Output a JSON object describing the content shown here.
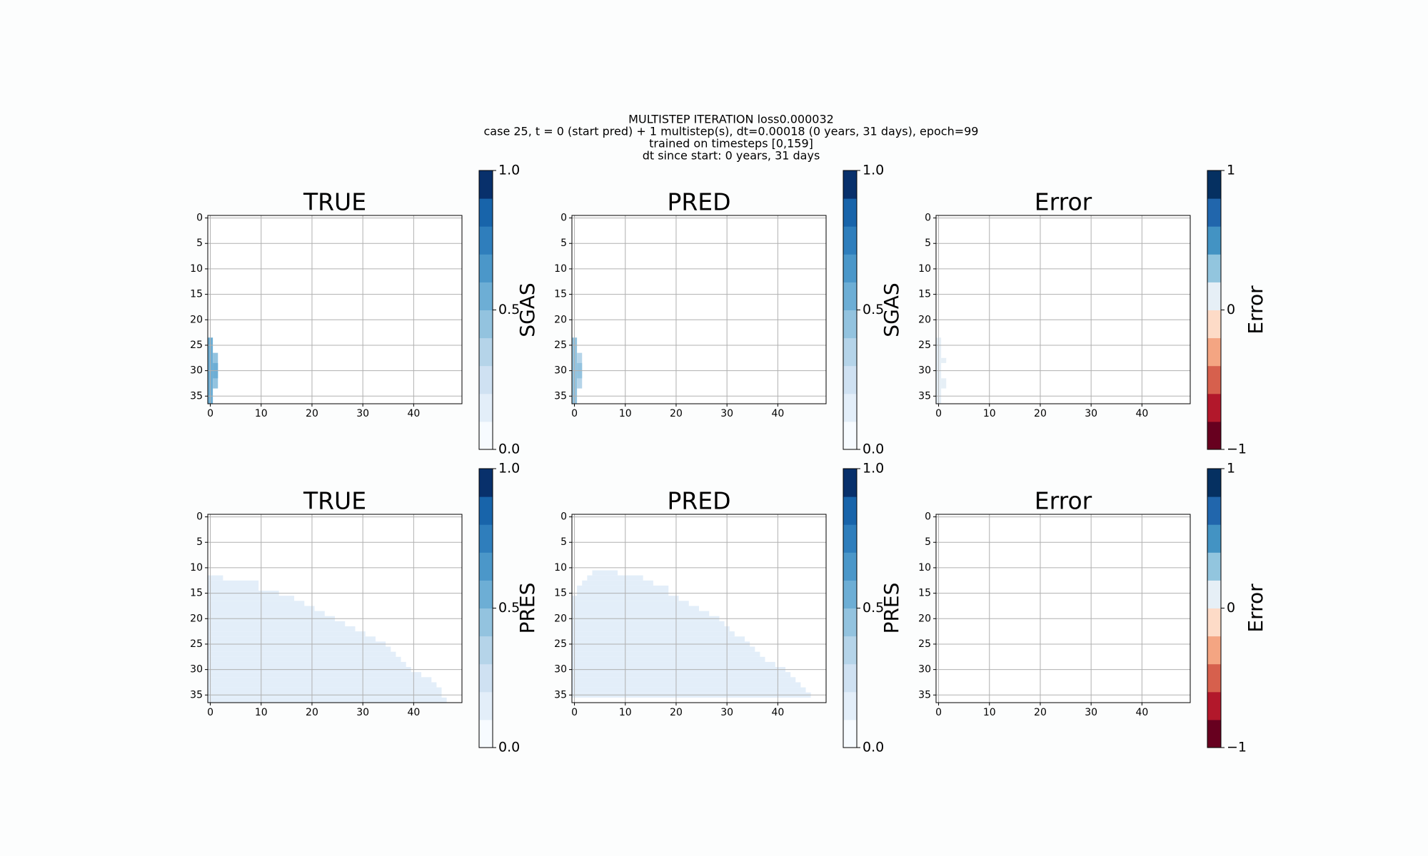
{
  "title": [
    "MULTISTEP ITERATION loss0.000032",
    "case 25, t = 0 (start pred) + 1 multistep(s), dt=0.00018 (0 years, 31 days), epoch=99",
    "trained on timesteps [0,159]",
    "dt since start: 0 years, 31 days"
  ],
  "chart_data": [
    {
      "type": "heatmap",
      "title": "TRUE",
      "colorbar_label": "SGAS",
      "xlim": [
        -0.5,
        49.5
      ],
      "ylim": [
        36.5,
        -0.5
      ],
      "xticks": [
        0,
        10,
        20,
        30,
        40
      ],
      "yticks": [
        0,
        5,
        10,
        15,
        20,
        25,
        30,
        35
      ],
      "grid": true,
      "clim": [
        0,
        1
      ],
      "cticks": [
        {
          "value": 0,
          "label": "0.0"
        },
        {
          "value": 0.5,
          "label": "0.5"
        },
        {
          "value": 1,
          "label": "1.0"
        }
      ],
      "colors": [
        "#f7fbff",
        "#e3eef9",
        "#cfe1f2",
        "#b5d4e9",
        "#93c3df",
        "#6daed5",
        "#4b97c9",
        "#2f7ebc",
        "#1864aa",
        "#08306b"
      ],
      "cells": [
        [
          24,
          36,
          0,
          0,
          0.5
        ],
        [
          27,
          33,
          1,
          1,
          0.4
        ],
        [
          29,
          31,
          1,
          1,
          0.5
        ]
      ]
    },
    {
      "type": "heatmap",
      "title": "PRED",
      "colorbar_label": "SGAS",
      "xlim": [
        -0.5,
        49.5
      ],
      "ylim": [
        36.5,
        -0.5
      ],
      "xticks": [
        0,
        10,
        20,
        30,
        40
      ],
      "yticks": [
        0,
        5,
        10,
        15,
        20,
        25,
        30,
        35
      ],
      "grid": true,
      "clim": [
        0,
        1
      ],
      "cticks": [
        {
          "value": 0,
          "label": "0.0"
        },
        {
          "value": 0.5,
          "label": "0.5"
        },
        {
          "value": 1,
          "label": "1.0"
        }
      ],
      "colors": [
        "#f7fbff",
        "#e3eef9",
        "#cfe1f2",
        "#b5d4e9",
        "#93c3df",
        "#6daed5",
        "#4b97c9",
        "#2f7ebc",
        "#1864aa",
        "#08306b"
      ],
      "cells": [
        [
          24,
          36,
          0,
          0,
          0.4
        ],
        [
          27,
          33,
          1,
          1,
          0.3
        ],
        [
          29,
          31,
          1,
          1,
          0.4
        ]
      ]
    },
    {
      "type": "heatmap",
      "title": "Error",
      "colorbar_label": "Error",
      "xlim": [
        -0.5,
        49.5
      ],
      "ylim": [
        36.5,
        -0.5
      ],
      "xticks": [
        0,
        10,
        20,
        30,
        40
      ],
      "yticks": [
        0,
        5,
        10,
        15,
        20,
        25,
        30,
        35
      ],
      "grid": true,
      "clim": [
        -1,
        1
      ],
      "cticks": [
        {
          "value": -1,
          "label": "−1"
        },
        0,
        1
      ],
      "colors": [
        "#67001f",
        "#b2182b",
        "#d6604d",
        "#f4a582",
        "#fddbc7",
        "#e6eff6",
        "#92c5de",
        "#4393c3",
        "#2166ac",
        "#053061"
      ],
      "cells": [
        [
          24,
          36,
          0,
          0,
          0.05
        ],
        [
          28,
          28,
          1,
          1,
          0.05
        ],
        [
          32,
          33,
          1,
          1,
          0.05
        ]
      ]
    },
    {
      "type": "heatmap",
      "title": "TRUE",
      "colorbar_label": "PRES",
      "xlim": [
        -0.5,
        49.5
      ],
      "ylim": [
        36.5,
        -0.5
      ],
      "xticks": [
        0,
        10,
        20,
        30,
        40
      ],
      "yticks": [
        0,
        5,
        10,
        15,
        20,
        25,
        30,
        35
      ],
      "grid": true,
      "clim": [
        0,
        1
      ],
      "cticks": [
        {
          "value": 0,
          "label": "0.0"
        },
        {
          "value": 0.5,
          "label": "0.5"
        },
        {
          "value": 1,
          "label": "1.0"
        }
      ],
      "colors": [
        "#f7fbff",
        "#e3eef9",
        "#cfe1f2",
        "#b5d4e9",
        "#93c3df",
        "#6daed5",
        "#4b97c9",
        "#2f7ebc",
        "#1864aa",
        "#08306b"
      ],
      "cells": [
        [
          12,
          12,
          0,
          2,
          0.12
        ],
        [
          13,
          14,
          0,
          9,
          0.12
        ],
        [
          15,
          15,
          0,
          13,
          0.12
        ],
        [
          16,
          16,
          0,
          16,
          0.12
        ],
        [
          17,
          17,
          0,
          18,
          0.12
        ],
        [
          18,
          18,
          0,
          20,
          0.12
        ],
        [
          19,
          19,
          0,
          22,
          0.12
        ],
        [
          20,
          20,
          0,
          24,
          0.12
        ],
        [
          21,
          21,
          0,
          26,
          0.12
        ],
        [
          22,
          22,
          0,
          28,
          0.12
        ],
        [
          23,
          23,
          0,
          30,
          0.12
        ],
        [
          24,
          24,
          0,
          32,
          0.12
        ],
        [
          25,
          25,
          0,
          34,
          0.12
        ],
        [
          26,
          26,
          0,
          35,
          0.12
        ],
        [
          27,
          27,
          0,
          36,
          0.12
        ],
        [
          28,
          28,
          0,
          37,
          0.12
        ],
        [
          29,
          29,
          0,
          38,
          0.12
        ],
        [
          30,
          30,
          0,
          39,
          0.12
        ],
        [
          31,
          31,
          0,
          41,
          0.12
        ],
        [
          32,
          32,
          0,
          43,
          0.12
        ],
        [
          33,
          33,
          0,
          44,
          0.12
        ],
        [
          34,
          35,
          0,
          45,
          0.12
        ],
        [
          36,
          36,
          0,
          46,
          0.12
        ]
      ]
    },
    {
      "type": "heatmap",
      "title": "PRED",
      "colorbar_label": "PRES",
      "xlim": [
        -0.5,
        49.5
      ],
      "ylim": [
        36.5,
        -0.5
      ],
      "xticks": [
        0,
        10,
        20,
        30,
        40
      ],
      "yticks": [
        0,
        5,
        10,
        15,
        20,
        25,
        30,
        35
      ],
      "grid": true,
      "clim": [
        0,
        1
      ],
      "cticks": [
        {
          "value": 0,
          "label": "0.0"
        },
        {
          "value": 0.5,
          "label": "0.5"
        },
        {
          "value": 1,
          "label": "1.0"
        }
      ],
      "colors": [
        "#f7fbff",
        "#e3eef9",
        "#cfe1f2",
        "#b5d4e9",
        "#93c3df",
        "#6daed5",
        "#4b97c9",
        "#2f7ebc",
        "#1864aa",
        "#08306b"
      ],
      "cells": [
        [
          11,
          11,
          4,
          8,
          0.12
        ],
        [
          12,
          12,
          3,
          13,
          0.12
        ],
        [
          13,
          13,
          2,
          15,
          0.12
        ],
        [
          14,
          15,
          1,
          18,
          0.12
        ],
        [
          16,
          16,
          0,
          20,
          0.12
        ],
        [
          17,
          17,
          0,
          22,
          0.12
        ],
        [
          18,
          18,
          0,
          24,
          0.12
        ],
        [
          19,
          19,
          0,
          26,
          0.12
        ],
        [
          20,
          20,
          0,
          28,
          0.12
        ],
        [
          21,
          21,
          0,
          29,
          0.12
        ],
        [
          22,
          22,
          0,
          30,
          0.12
        ],
        [
          23,
          23,
          0,
          31,
          0.12
        ],
        [
          24,
          24,
          0,
          33,
          0.12
        ],
        [
          25,
          25,
          0,
          34,
          0.12
        ],
        [
          26,
          26,
          0,
          35,
          0.12
        ],
        [
          27,
          27,
          0,
          36,
          0.12
        ],
        [
          28,
          28,
          0,
          37,
          0.12
        ],
        [
          29,
          29,
          0,
          39,
          0.12
        ],
        [
          30,
          30,
          0,
          41,
          0.12
        ],
        [
          31,
          31,
          0,
          42,
          0.12
        ],
        [
          32,
          32,
          0,
          43,
          0.12
        ],
        [
          33,
          33,
          0,
          44,
          0.12
        ],
        [
          34,
          34,
          0,
          45,
          0.12
        ],
        [
          35,
          35,
          0,
          46,
          0.12
        ]
      ]
    },
    {
      "type": "heatmap",
      "title": "Error",
      "colorbar_label": "Error",
      "xlim": [
        -0.5,
        49.5
      ],
      "ylim": [
        36.5,
        -0.5
      ],
      "xticks": [
        0,
        10,
        20,
        30,
        40
      ],
      "yticks": [
        0,
        5,
        10,
        15,
        20,
        25,
        30,
        35
      ],
      "grid": true,
      "clim": [
        -1,
        1
      ],
      "cticks": [
        {
          "value": -1,
          "label": "−1"
        },
        0,
        1
      ],
      "colors": [
        "#67001f",
        "#b2182b",
        "#d6604d",
        "#f4a582",
        "#fddbc7",
        "#e6eff6",
        "#92c5de",
        "#4393c3",
        "#2166ac",
        "#053061"
      ],
      "cells": []
    }
  ]
}
